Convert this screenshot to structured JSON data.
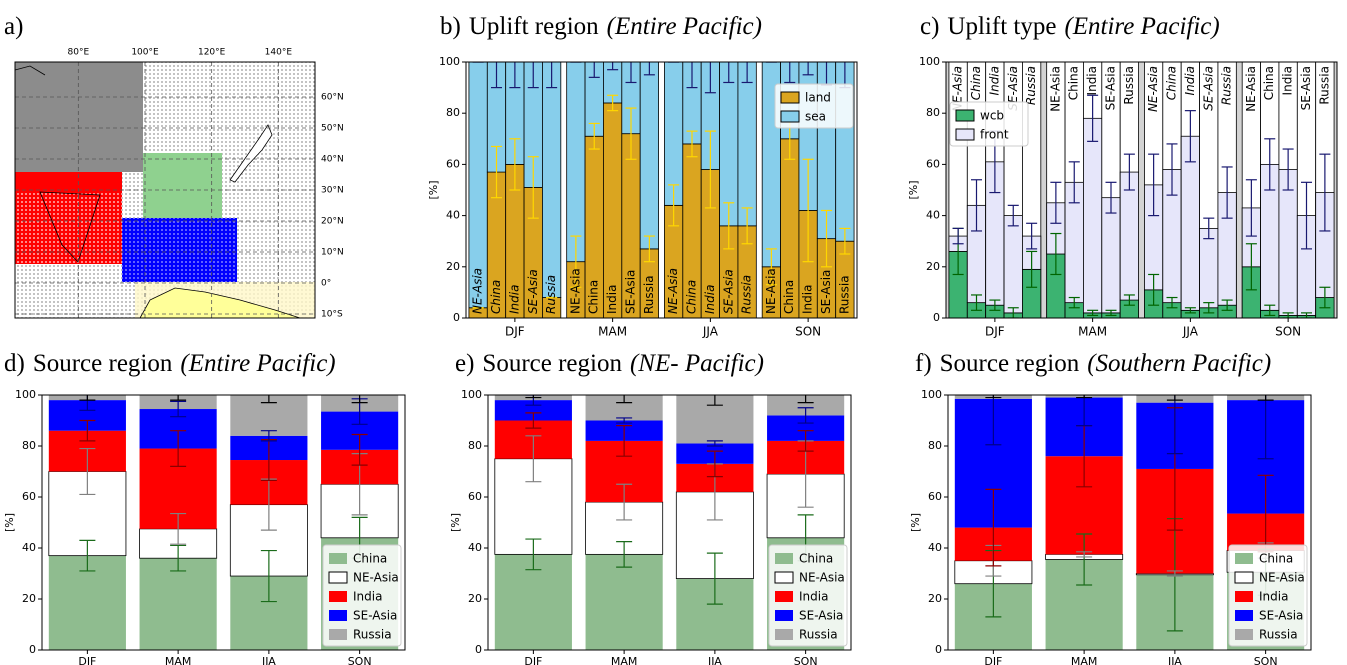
{
  "chart_data": [
    {
      "type": "map",
      "panel_label": "a)",
      "xlim": [
        61,
        151
      ],
      "ylim": [
        -11.3,
        71.3
      ],
      "xticks": [
        {
          "value": 80,
          "label": "80°E"
        },
        {
          "value": 100,
          "label": "100°E"
        },
        {
          "value": 120,
          "label": "120°E"
        },
        {
          "value": 140,
          "label": "140°E"
        }
      ],
      "yticks": [
        {
          "value": 60,
          "label": "60°N"
        },
        {
          "value": 50,
          "label": "50°N"
        },
        {
          "value": 40,
          "label": "40°N"
        },
        {
          "value": 30,
          "label": "30°N"
        },
        {
          "value": 20,
          "label": "20°N"
        },
        {
          "value": 10,
          "label": "10°N"
        },
        {
          "value": 0,
          "label": "0°"
        },
        {
          "value": -10,
          "label": "10°S"
        }
      ],
      "grid": true
    },
    {
      "type": "bar",
      "stacked": true,
      "panel_label": "b)",
      "title": "Uplift region",
      "subtitle": "(Entire Pacific)",
      "ylabel": "[%]",
      "ylim": [
        0,
        100
      ],
      "yticks": [
        0,
        20,
        40,
        60,
        80,
        100
      ],
      "groups": [
        "DJF",
        "MAM",
        "JJA",
        "SON"
      ],
      "categories": [
        "NE-Asia",
        "China",
        "India",
        "SE-Asia",
        "Russia",
        "NE-Asia",
        "China",
        "India",
        "SE-Asia",
        "Russia",
        "NE-Asia",
        "China",
        "India",
        "SE-Asia",
        "Russia",
        "NE-Asia",
        "China",
        "India",
        "SE-Asia",
        "Russia"
      ],
      "bar_labels": "bottom",
      "edgecolor": "#000000",
      "legend": "upper right",
      "series": [
        {
          "name": "land",
          "color": "#daa520",
          "error_color": "#ffd700",
          "values": [
            4,
            57,
            60,
            51,
            8,
            22,
            71,
            84,
            72,
            27,
            44,
            68,
            58,
            36,
            36,
            20,
            70,
            42,
            31,
            30
          ],
          "errors": [
            0,
            10,
            10,
            12,
            0,
            10,
            5,
            3,
            10,
            5,
            8,
            5,
            15,
            9,
            7,
            7,
            8,
            20,
            11,
            5
          ]
        },
        {
          "name": "sea",
          "color": "#87ceeb",
          "error_color": "#191970",
          "values": [
            96,
            43,
            40,
            49,
            92,
            78,
            29,
            16,
            28,
            73,
            56,
            32,
            42,
            64,
            64,
            80,
            30,
            58,
            69,
            70
          ],
          "errors": [
            0,
            10,
            10,
            10,
            10,
            0,
            6,
            3,
            8,
            5,
            0,
            10,
            12,
            8,
            8,
            0,
            8,
            5,
            9,
            10
          ]
        }
      ]
    },
    {
      "type": "bar",
      "stacked": true,
      "panel_label": "c)",
      "title": "Uplift type",
      "subtitle": "(Entire Pacific)",
      "ylabel": "[%]",
      "ylim": [
        0,
        100
      ],
      "yticks": [
        0,
        20,
        40,
        60,
        80,
        100
      ],
      "groups": [
        "DJF",
        "MAM",
        "JJA",
        "SON"
      ],
      "categories": [
        "NE-Asia",
        "China",
        "India",
        "SE-Asia",
        "Russia",
        "NE-Asia",
        "China",
        "India",
        "SE-Asia",
        "Russia",
        "NE-Asia",
        "China",
        "India",
        "SE-Asia",
        "Russia",
        "NE-Asia",
        "China",
        "India",
        "SE-Asia",
        "Russia"
      ],
      "bar_labels": "top",
      "edgecolor": "#000000",
      "background": "#d3d3d3",
      "bar_background": "#ffffff",
      "legend": "upper left",
      "series": [
        {
          "name": "wcb",
          "color": "#3cb371",
          "error_color": "#006400",
          "values": [
            26,
            6,
            5,
            2,
            19,
            25,
            6,
            2,
            2,
            7,
            11,
            6,
            3,
            4,
            5,
            20,
            3,
            1,
            1,
            8
          ],
          "errors": [
            9,
            3,
            2,
            2,
            7,
            8,
            2,
            1,
            1,
            2,
            6,
            2,
            1,
            2,
            2,
            9,
            2,
            1,
            1,
            4
          ]
        },
        {
          "name": "front",
          "color": "#e6e6fa",
          "error_color": "#191970",
          "values": [
            6,
            38,
            56,
            38,
            13,
            20,
            47,
            76,
            45,
            50,
            41,
            52,
            68,
            31,
            44,
            23,
            57,
            57,
            39,
            41
          ],
          "errors": [
            3,
            10,
            12,
            4,
            5,
            8,
            8,
            9,
            6,
            7,
            12,
            10,
            10,
            4,
            10,
            11,
            10,
            8,
            13,
            15
          ]
        }
      ]
    },
    {
      "type": "bar",
      "stacked": true,
      "panel_label": "d)",
      "title": "Source region",
      "subtitle": "(Entire Pacific)",
      "ylabel": "[%]",
      "ylim": [
        0,
        100
      ],
      "yticks": [
        0,
        20,
        40,
        60,
        80,
        100
      ],
      "categories": [
        "DJF",
        "MAM",
        "JJA",
        "SON"
      ],
      "legend": "lower right",
      "series": [
        {
          "name": "China",
          "color": "#8fbc8f",
          "error_color": "#1a6b1a",
          "values": [
            37,
            36,
            29,
            44
          ],
          "errors": [
            6,
            5,
            10,
            8
          ]
        },
        {
          "name": "NE-Asia",
          "color": "#ffffff",
          "edgecolor": "#000000",
          "error_color": "#808080",
          "values": [
            33,
            11.5,
            28,
            21
          ],
          "errors": [
            9,
            6,
            10,
            12
          ]
        },
        {
          "name": "India",
          "color": "#ff0000",
          "error_color": "#8b0000",
          "values": [
            16,
            31.5,
            17.5,
            13.5
          ],
          "errors": [
            4,
            7,
            8,
            6
          ]
        },
        {
          "name": "SE-Asia",
          "color": "#0000ff",
          "error_color": "#00008b",
          "values": [
            12,
            15.5,
            9.5,
            15
          ],
          "errors": [
            4,
            3,
            2,
            5
          ]
        },
        {
          "name": "Russia",
          "color": "#a9a9a9",
          "error_color": "#000000",
          "values": [
            2,
            5.5,
            16,
            6.5
          ],
          "errors": [
            2,
            2,
            3,
            3
          ]
        }
      ]
    },
    {
      "type": "bar",
      "stacked": true,
      "panel_label": "e)",
      "title": "Source region",
      "subtitle": "(NE- Pacific)",
      "ylabel": "[%]",
      "ylim": [
        0,
        100
      ],
      "yticks": [
        0,
        20,
        40,
        60,
        80,
        100
      ],
      "categories": [
        "DJF",
        "MAM",
        "JJA",
        "SON"
      ],
      "legend": "lower right",
      "series": [
        {
          "name": "China",
          "color": "#8fbc8f",
          "error_color": "#1a6b1a",
          "values": [
            37.5,
            37.5,
            28,
            44
          ],
          "errors": [
            6,
            5,
            10,
            9
          ]
        },
        {
          "name": "NE-Asia",
          "color": "#ffffff",
          "edgecolor": "#000000",
          "error_color": "#808080",
          "values": [
            37.5,
            20.5,
            34,
            25
          ],
          "errors": [
            9,
            7,
            11,
            13
          ]
        },
        {
          "name": "India",
          "color": "#ff0000",
          "error_color": "#8b0000",
          "values": [
            15,
            24,
            11,
            13
          ],
          "errors": [
            3,
            6,
            5,
            4
          ]
        },
        {
          "name": "SE-Asia",
          "color": "#0000ff",
          "error_color": "#00008b",
          "values": [
            8,
            8,
            8,
            10
          ],
          "errors": [
            2,
            1,
            1,
            3
          ]
        },
        {
          "name": "Russia",
          "color": "#a9a9a9",
          "error_color": "#000000",
          "values": [
            2,
            10,
            19,
            8
          ],
          "errors": [
            1,
            3,
            4,
            3
          ]
        }
      ]
    },
    {
      "type": "bar",
      "stacked": true,
      "panel_label": "f)",
      "title": "Source region",
      "subtitle": "(Southern Pacific)",
      "ylabel": "[%]",
      "ylim": [
        0,
        100
      ],
      "yticks": [
        0,
        20,
        40,
        60,
        80,
        100
      ],
      "categories": [
        "DJF",
        "MAM",
        "JJA",
        "SON"
      ],
      "legend": "lower right",
      "series": [
        {
          "name": "China",
          "color": "#8fbc8f",
          "error_color": "#1a6b1a",
          "values": [
            26,
            35.5,
            29.5,
            30.5
          ],
          "errors": [
            13,
            10,
            22,
            9
          ]
        },
        {
          "name": "NE-Asia",
          "color": "#ffffff",
          "edgecolor": "#000000",
          "error_color": "#808080",
          "values": [
            9,
            2,
            0.5,
            8.5
          ],
          "errors": [
            6,
            1,
            1,
            3
          ]
        },
        {
          "name": "India",
          "color": "#ff0000",
          "error_color": "#8b0000",
          "values": [
            13,
            38.5,
            41,
            14.5
          ],
          "errors": [
            15,
            12,
            24,
            15
          ]
        },
        {
          "name": "SE-Asia",
          "color": "#0000ff",
          "error_color": "#00008b",
          "values": [
            50.5,
            23,
            26,
            44.5
          ],
          "errors": [
            18,
            11,
            20,
            23
          ]
        },
        {
          "name": "Russia",
          "color": "#a9a9a9",
          "error_color": "#000000",
          "values": [
            1.5,
            1,
            3,
            2
          ],
          "errors": [
            1,
            1,
            2,
            2
          ]
        }
      ]
    }
  ]
}
